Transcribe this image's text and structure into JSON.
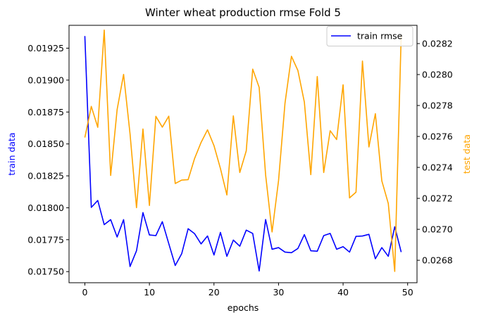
{
  "chart_data": {
    "type": "line",
    "title": "Winter wheat production rmse Fold 5",
    "xlabel": "epochs",
    "ylabel_left": "train data",
    "ylabel_right": "test data",
    "xlim": [
      -2.45,
      51.45
    ],
    "ylim_left": [
      0.017413,
      0.019429
    ],
    "ylim_right": [
      0.026655,
      0.028318
    ],
    "x_ticks": [
      0,
      10,
      20,
      30,
      40,
      50
    ],
    "y_left_ticks": [
      "0.01750",
      "0.01775",
      "0.01800",
      "0.01825",
      "0.01850",
      "0.01875",
      "0.01900",
      "0.01925"
    ],
    "y_right_ticks": [
      "0.0268",
      "0.0270",
      "0.0272",
      "0.0274",
      "0.0276",
      "0.0278",
      "0.0280",
      "0.0282"
    ],
    "grid": false,
    "legend_position": "top-right",
    "legend_entries": [
      "train rmse"
    ],
    "colors": {
      "train": "#0000ff",
      "test": "#ffa500",
      "left_label": "#0000ff",
      "right_label": "#ffa500"
    },
    "series": [
      {
        "name": "train rmse",
        "axis": "left",
        "x": [
          0,
          1,
          2,
          3,
          4,
          5,
          6,
          7,
          8,
          9,
          10,
          11,
          12,
          13,
          14,
          15,
          16,
          17,
          18,
          19,
          20,
          21,
          22,
          23,
          24,
          25,
          26,
          27,
          28,
          29,
          30,
          31,
          32,
          33,
          34,
          35,
          36,
          37,
          38,
          39,
          40,
          41,
          42,
          43,
          44,
          45,
          46,
          47,
          48,
          49
        ],
        "values": [
          0.019345,
          0.018003,
          0.018057,
          0.017868,
          0.017907,
          0.017771,
          0.017907,
          0.01754,
          0.017663,
          0.017962,
          0.017787,
          0.017782,
          0.017891,
          0.017719,
          0.017548,
          0.01764,
          0.017836,
          0.017797,
          0.017717,
          0.017779,
          0.01763,
          0.017807,
          0.01762,
          0.017747,
          0.017699,
          0.017825,
          0.017799,
          0.017505,
          0.017908,
          0.017675,
          0.017688,
          0.017653,
          0.017648,
          0.017681,
          0.01779,
          0.017663,
          0.01766,
          0.017782,
          0.017799,
          0.017675,
          0.017695,
          0.017653,
          0.017776,
          0.017779,
          0.017792,
          0.017601,
          0.017688,
          0.01762,
          0.017851,
          0.017653
        ]
      },
      {
        "axis": "right",
        "x": [
          0,
          1,
          2,
          3,
          4,
          5,
          6,
          7,
          8,
          9,
          10,
          11,
          12,
          13,
          14,
          15,
          16,
          17,
          18,
          19,
          20,
          21,
          22,
          23,
          24,
          25,
          26,
          27,
          28,
          29,
          30,
          31,
          32,
          33,
          34,
          35,
          36,
          37,
          38,
          39,
          40,
          41,
          42,
          43,
          44,
          45,
          46,
          47,
          48,
          49
        ],
        "values": [
          0.027593,
          0.027794,
          0.027659,
          0.028287,
          0.027348,
          0.027774,
          0.028001,
          0.027617,
          0.02714,
          0.027648,
          0.027154,
          0.02773,
          0.02766,
          0.027731,
          0.027296,
          0.027318,
          0.027321,
          0.027458,
          0.027561,
          0.027643,
          0.027541,
          0.027393,
          0.027222,
          0.027733,
          0.027367,
          0.027507,
          0.028035,
          0.027917,
          0.027351,
          0.026983,
          0.027314,
          0.027814,
          0.028118,
          0.028026,
          0.027822,
          0.027353,
          0.027987,
          0.027367,
          0.027637,
          0.02758,
          0.027934,
          0.027203,
          0.02724,
          0.028087,
          0.027532,
          0.027747,
          0.027313,
          0.027167,
          0.026728,
          0.028255
        ]
      }
    ]
  }
}
